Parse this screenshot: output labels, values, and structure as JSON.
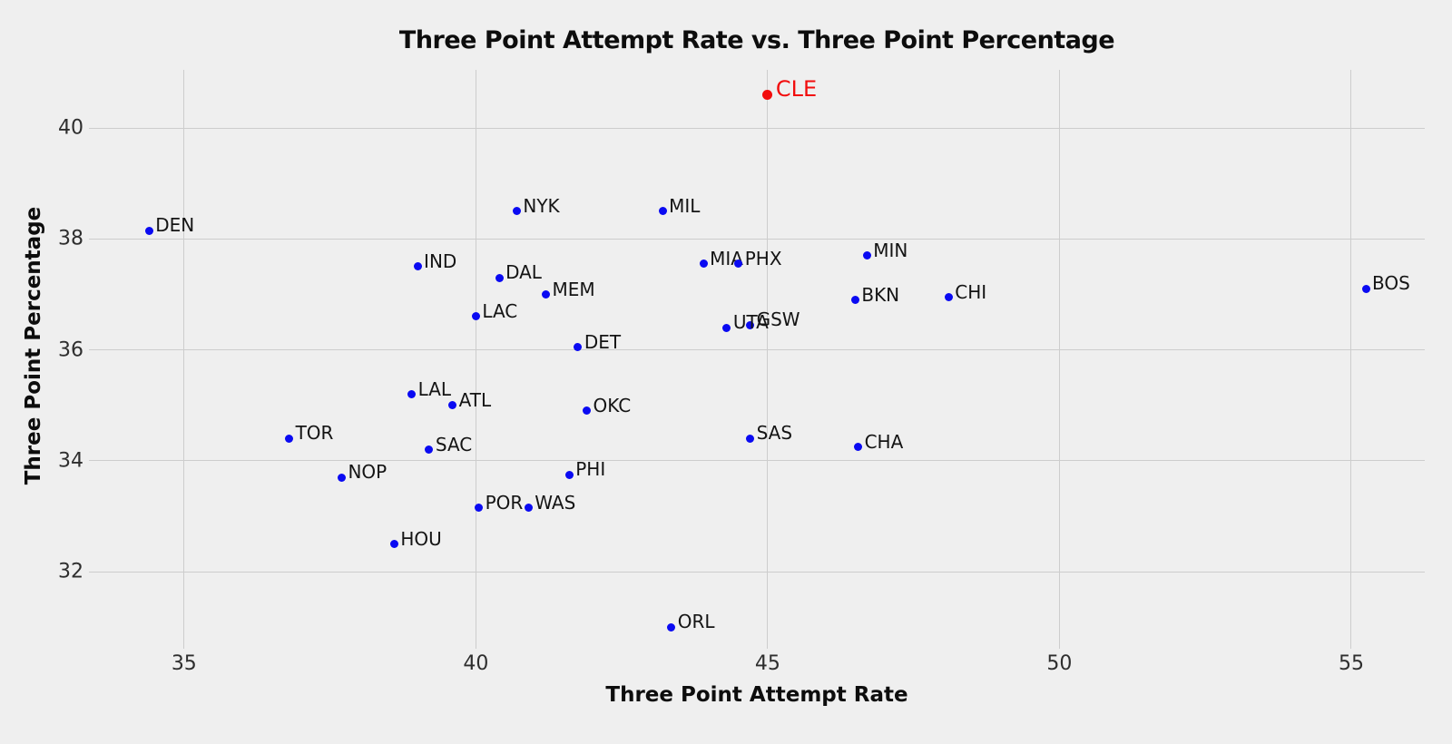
{
  "figure": {
    "background_color": "#efefef",
    "gridline_color": "#cdcdcd",
    "text_color": "#0d0d0d",
    "tick_color": "#2e2e2e"
  },
  "chart_data": {
    "type": "scatter",
    "title": "Three Point Attempt Rate vs. Three Point Percentage",
    "xlabel": "Three Point Attempt Rate",
    "ylabel": "Three Point Percentage",
    "xlim": [
      33.37,
      56.26
    ],
    "ylim": [
      30.61,
      41.05
    ],
    "x_ticks": [
      35,
      40,
      45,
      50,
      55
    ],
    "y_ticks": [
      32,
      34,
      36,
      38,
      40
    ],
    "grid": true,
    "legend_position": "none",
    "point_color": "#0a0af2",
    "highlight_color": "#f20d0d",
    "highlight_team": "CLE",
    "points": [
      {
        "team": "CLE",
        "x": 45.0,
        "y": 40.6,
        "highlight": true
      },
      {
        "team": "DEN",
        "x": 34.4,
        "y": 38.15,
        "highlight": false
      },
      {
        "team": "NYK",
        "x": 40.7,
        "y": 38.5,
        "highlight": false
      },
      {
        "team": "MIL",
        "x": 43.2,
        "y": 38.5,
        "highlight": false
      },
      {
        "team": "MIN",
        "x": 46.7,
        "y": 37.7,
        "highlight": false
      },
      {
        "team": "MIA",
        "x": 43.9,
        "y": 37.55,
        "highlight": false
      },
      {
        "team": "PHX",
        "x": 44.5,
        "y": 37.55,
        "highlight": false
      },
      {
        "team": "IND",
        "x": 39.0,
        "y": 37.5,
        "highlight": false
      },
      {
        "team": "DAL",
        "x": 40.4,
        "y": 37.3,
        "highlight": false
      },
      {
        "team": "BOS",
        "x": 55.25,
        "y": 37.1,
        "highlight": false
      },
      {
        "team": "MEM",
        "x": 41.2,
        "y": 37.0,
        "highlight": false
      },
      {
        "team": "CHI",
        "x": 48.1,
        "y": 36.95,
        "highlight": false
      },
      {
        "team": "BKN",
        "x": 46.5,
        "y": 36.9,
        "highlight": false
      },
      {
        "team": "LAC",
        "x": 40.0,
        "y": 36.6,
        "highlight": false
      },
      {
        "team": "GSW",
        "x": 44.7,
        "y": 36.45,
        "highlight": false
      },
      {
        "team": "UTA",
        "x": 44.3,
        "y": 36.4,
        "highlight": false
      },
      {
        "team": "DET",
        "x": 41.75,
        "y": 36.05,
        "highlight": false
      },
      {
        "team": "LAL",
        "x": 38.9,
        "y": 35.2,
        "highlight": false
      },
      {
        "team": "ATL",
        "x": 39.6,
        "y": 35.0,
        "highlight": false
      },
      {
        "team": "OKC",
        "x": 41.9,
        "y": 34.9,
        "highlight": false
      },
      {
        "team": "SAS",
        "x": 44.7,
        "y": 34.4,
        "highlight": false
      },
      {
        "team": "TOR",
        "x": 36.8,
        "y": 34.4,
        "highlight": false
      },
      {
        "team": "CHA",
        "x": 46.55,
        "y": 34.25,
        "highlight": false
      },
      {
        "team": "SAC",
        "x": 39.2,
        "y": 34.2,
        "highlight": false
      },
      {
        "team": "PHI",
        "x": 41.6,
        "y": 33.75,
        "highlight": false
      },
      {
        "team": "NOP",
        "x": 37.7,
        "y": 33.7,
        "highlight": false
      },
      {
        "team": "POR",
        "x": 40.05,
        "y": 33.15,
        "highlight": false
      },
      {
        "team": "WAS",
        "x": 40.9,
        "y": 33.15,
        "highlight": false
      },
      {
        "team": "HOU",
        "x": 38.6,
        "y": 32.5,
        "highlight": false
      },
      {
        "team": "ORL",
        "x": 43.35,
        "y": 31.0,
        "highlight": false
      }
    ]
  }
}
